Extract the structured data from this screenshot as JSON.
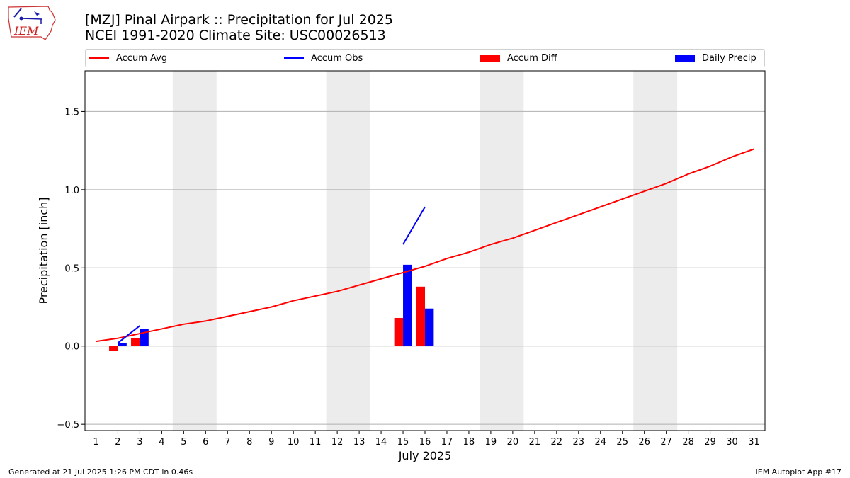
{
  "logo": {
    "text": "IEM"
  },
  "header": {
    "title_line1": "[MZJ] Pinal Airpark :: Precipitation for Jul 2025",
    "title_line2": "NCEI 1991-2020 Climate Site: USC00026513"
  },
  "legend": {
    "accum_avg": "Accum Avg",
    "accum_obs": "Accum Obs",
    "accum_diff": "Accum Diff",
    "daily_precip": "Daily Precip"
  },
  "footer": {
    "left": "Generated at 21 Jul 2025 1:26 PM CDT in 0.46s",
    "right": "IEM Autoplot App #17"
  },
  "colors": {
    "avg": "#ff0000",
    "obs": "#0000ff",
    "diff": "#ff0000",
    "daily": "#0000ff",
    "weekend": "#ececec",
    "grid": "#b0b0b0"
  },
  "chart_data": {
    "type": "bar",
    "xlabel": "July 2025",
    "ylabel": "Precipitation [inch]",
    "xlim": [
      0.5,
      31.5
    ],
    "ylim": [
      -0.54,
      1.76
    ],
    "yticks": [
      -0.5,
      0.0,
      0.5,
      1.0,
      1.5
    ],
    "ytick_labels": [
      "−0.5",
      "0.0",
      "0.5",
      "1.0",
      "1.5"
    ],
    "xticks": [
      1,
      2,
      3,
      4,
      5,
      6,
      7,
      8,
      9,
      10,
      11,
      12,
      13,
      14,
      15,
      16,
      17,
      18,
      19,
      20,
      21,
      22,
      23,
      24,
      25,
      26,
      27,
      28,
      29,
      30,
      31
    ],
    "grid_y": true,
    "weekend_bands": [
      [
        4.5,
        6.5
      ],
      [
        11.5,
        13.5
      ],
      [
        18.5,
        20.5
      ],
      [
        25.5,
        27.5
      ]
    ],
    "accum_avg": {
      "x": [
        1,
        2,
        3,
        4,
        5,
        6,
        7,
        8,
        9,
        10,
        11,
        12,
        13,
        14,
        15,
        16,
        17,
        18,
        19,
        20,
        21,
        22,
        23,
        24,
        25,
        26,
        27,
        28,
        29,
        30,
        31
      ],
      "y": [
        0.03,
        0.05,
        0.08,
        0.11,
        0.14,
        0.16,
        0.19,
        0.22,
        0.25,
        0.29,
        0.32,
        0.35,
        0.39,
        0.43,
        0.47,
        0.51,
        0.56,
        0.6,
        0.65,
        0.69,
        0.74,
        0.79,
        0.84,
        0.89,
        0.94,
        0.99,
        1.04,
        1.1,
        1.15,
        1.21,
        1.26
      ]
    },
    "accum_obs": [
      {
        "x": [
          2,
          3
        ],
        "y": [
          0.02,
          0.13
        ]
      },
      {
        "x": [
          15,
          16
        ],
        "y": [
          0.65,
          0.89
        ]
      }
    ],
    "accum_diff": {
      "x": [
        2,
        3,
        15,
        16
      ],
      "y": [
        -0.03,
        0.05,
        0.18,
        0.38
      ]
    },
    "daily_precip": {
      "x": [
        2,
        3,
        15,
        16
      ],
      "y": [
        0.02,
        0.11,
        0.52,
        0.24
      ]
    }
  }
}
